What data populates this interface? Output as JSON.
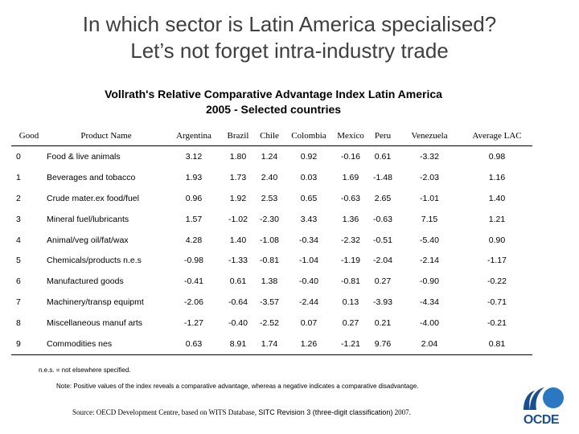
{
  "slide": {
    "title_line1": "In which sector is Latin America specialised?",
    "title_line2": "Let’s not forget intra-industry trade"
  },
  "table": {
    "title_line1": "Vollrath's Relative Comparative Advantage Index Latin America",
    "title_line2": "2005 - Selected countries",
    "headers": [
      "Good",
      "Product Name",
      "Argentina",
      "Brazil",
      "Chile",
      "Colombia",
      "Mexico",
      "Peru",
      "Venezuela",
      "Average LAC"
    ],
    "rows": [
      [
        "0",
        "Food & live animals",
        "3.12",
        "1.80",
        "1.24",
        "0.92",
        "-0.16",
        "0.61",
        "-3.32",
        "0.98"
      ],
      [
        "1",
        "Beverages and tobacco",
        "1.93",
        "1.73",
        "2.40",
        "0.03",
        "1.69",
        "-1.48",
        "-2.03",
        "1.16"
      ],
      [
        "2",
        "Crude mater.ex food/fuel",
        "0.96",
        "1.92",
        "2.53",
        "0.65",
        "-0.63",
        "2.65",
        "-1.01",
        "1.40"
      ],
      [
        "3",
        "Mineral fuel/lubricants",
        "1.57",
        "-1.02",
        "-2.30",
        "3.43",
        "1.36",
        "-0.63",
        "7.15",
        "1.21"
      ],
      [
        "4",
        "Animal/veg oil/fat/wax",
        "4.28",
        "1.40",
        "-1.08",
        "-0.34",
        "-2.32",
        "-0.51",
        "-5.40",
        "0.90"
      ],
      [
        "5",
        "Chemicals/products n.e.s",
        "-0.98",
        "-1.33",
        "-0.81",
        "-1.04",
        "-1.19",
        "-2.04",
        "-2.14",
        "-1.17"
      ],
      [
        "6",
        "Manufactured goods",
        "-0.41",
        "0.61",
        "1.38",
        "-0.40",
        "-0.81",
        "0.27",
        "-0.90",
        "-0.22"
      ],
      [
        "7",
        "Machinery/transp equipmt",
        "-2.06",
        "-0.64",
        "-3.57",
        "-2.44",
        "0.13",
        "-3.93",
        "-4.34",
        "-0.71"
      ],
      [
        "8",
        "Miscellaneous manuf arts",
        "-1.27",
        "-0.40",
        "-2.52",
        "0.07",
        "0.27",
        "0.21",
        "-4.00",
        "-0.21"
      ],
      [
        "9",
        "Commodities nes",
        "0.63",
        "8.91",
        "1.74",
        "1.26",
        "-1.21",
        "9.76",
        "2.04",
        "0.81"
      ]
    ]
  },
  "footnote": "n.e.s. = not elsewhere specified.",
  "note": "Note: Positive values of the index reveals a comparative advantage, whereas a negative indicates a comparative disadvantage.",
  "source": {
    "prefix": "Source: OECD Development Centre, based on WITS Database,",
    "sitc": "SITC Revision 3 (three-digit classification)",
    "year": "2007."
  },
  "logo": {
    "text": "OCDE",
    "icon": "oecd-logo-icon",
    "color": "#1a4f8f",
    "accent": "#2b78c2"
  }
}
